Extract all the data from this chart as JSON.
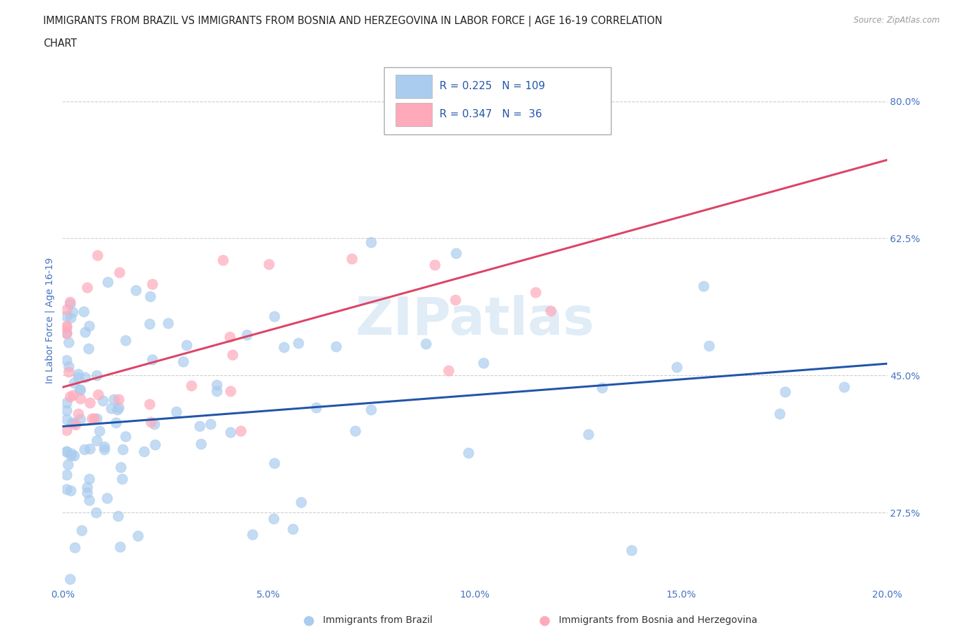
{
  "title_line1": "IMMIGRANTS FROM BRAZIL VS IMMIGRANTS FROM BOSNIA AND HERZEGOVINA IN LABOR FORCE | AGE 16-19 CORRELATION",
  "title_line2": "CHART",
  "source_text": "Source: ZipAtlas.com",
  "ylabel": "In Labor Force | Age 16-19",
  "xlim": [
    0.0,
    0.2
  ],
  "ylim": [
    0.18,
    0.86
  ],
  "xticks": [
    0.0,
    0.05,
    0.1,
    0.15,
    0.2
  ],
  "xtick_labels": [
    "0.0%",
    "5.0%",
    "10.0%",
    "15.0%",
    "20.0%"
  ],
  "yticks": [
    0.275,
    0.45,
    0.625,
    0.8
  ],
  "ytick_labels": [
    "27.5%",
    "45.0%",
    "62.5%",
    "80.0%"
  ],
  "grid_color": "#cccccc",
  "brazil_color": "#aaccee",
  "brazil_line_color": "#2255aa",
  "bosnia_color": "#ffaabb",
  "bosnia_line_color": "#dd4466",
  "brazil_R": 0.225,
  "brazil_N": 109,
  "bosnia_R": 0.347,
  "bosnia_N": 36,
  "legend_color": "#2255aa",
  "brazil_trend_x0": 0.0,
  "brazil_trend_y0": 0.385,
  "brazil_trend_x1": 0.2,
  "brazil_trend_y1": 0.465,
  "bosnia_trend_x0": 0.0,
  "bosnia_trend_y0": 0.435,
  "bosnia_trend_x1": 0.2,
  "bosnia_trend_y1": 0.725,
  "background_color": "#ffffff"
}
